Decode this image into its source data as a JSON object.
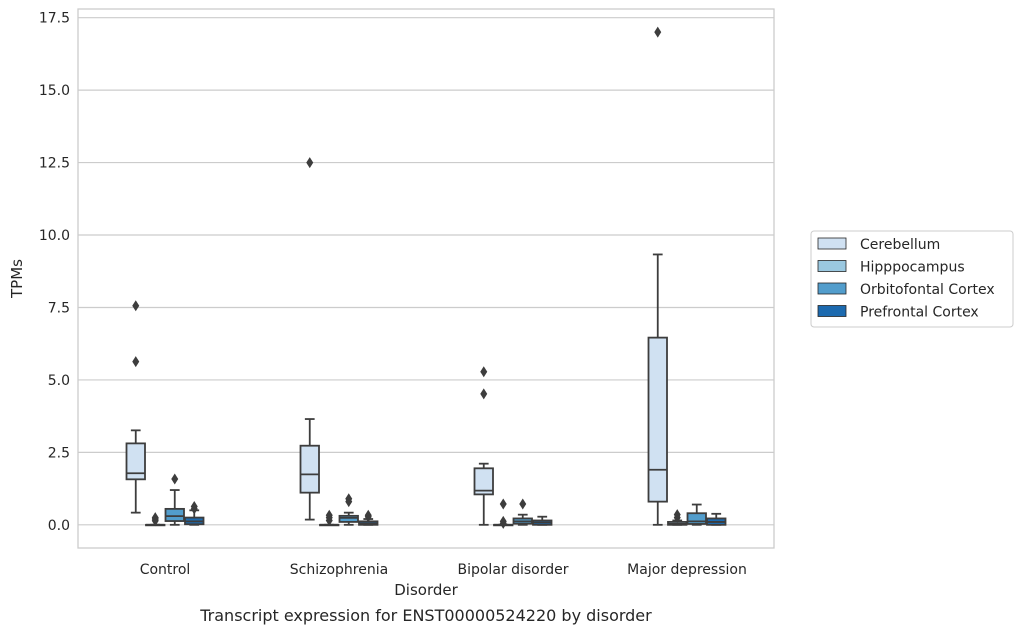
{
  "chart_data": {
    "type": "box",
    "xlabel": "Disorder",
    "ylabel": "TPMs",
    "caption": "Transcript expression for ENST00000524220 by disorder",
    "categories": [
      "Control",
      "Schizophrenia",
      "Bipolar disorder",
      "Major depression"
    ],
    "ylim": [
      -0.8,
      17.8
    ],
    "yticks": [
      0.0,
      2.5,
      5.0,
      7.5,
      10.0,
      12.5,
      15.0,
      17.5
    ],
    "ytick_labels": [
      "0.0",
      "2.5",
      "5.0",
      "7.5",
      "10.0",
      "12.5",
      "15.0",
      "17.5"
    ],
    "grid": true,
    "legend_position": "right",
    "series": [
      {
        "name": "Cerebellum",
        "color": "#d0e1f2",
        "boxes": [
          {
            "whislo": 0.42,
            "q1": 1.57,
            "med": 1.78,
            "q3": 2.81,
            "whishi": 3.26,
            "fliers": [
              5.63,
              7.56
            ]
          },
          {
            "whislo": 0.18,
            "q1": 1.11,
            "med": 1.74,
            "q3": 2.73,
            "whishi": 3.65,
            "fliers": [
              12.5
            ]
          },
          {
            "whislo": 0.0,
            "q1": 1.05,
            "med": 1.18,
            "q3": 1.95,
            "whishi": 2.11,
            "fliers": [
              4.52,
              5.28
            ]
          },
          {
            "whislo": 0.0,
            "q1": 0.8,
            "med": 1.9,
            "q3": 6.46,
            "whishi": 9.33,
            "fliers": [
              17.0
            ]
          }
        ]
      },
      {
        "name": "Hipppocampus",
        "color": "#9ac8e0",
        "boxes": [
          {
            "whislo": 0.0,
            "q1": 0.0,
            "med": 0.0,
            "q3": 0.0,
            "whishi": 0.0,
            "fliers": [
              0.14,
              0.2,
              0.25
            ]
          },
          {
            "whislo": 0.0,
            "q1": 0.0,
            "med": 0.0,
            "q3": 0.0,
            "whishi": 0.0,
            "fliers": [
              0.15,
              0.25,
              0.33
            ]
          },
          {
            "whislo": 0.0,
            "q1": 0.0,
            "med": 0.0,
            "q3": 0.0,
            "whishi": 0.0,
            "fliers": [
              0.05,
              0.12,
              0.72
            ]
          },
          {
            "whislo": 0.0,
            "q1": 0.0,
            "med": 0.03,
            "q3": 0.1,
            "whishi": 0.15,
            "fliers": [
              0.25,
              0.35
            ]
          }
        ]
      },
      {
        "name": "Orbitofontal Cortex",
        "color": "#529dcc",
        "boxes": [
          {
            "whislo": 0.0,
            "q1": 0.13,
            "med": 0.3,
            "q3": 0.55,
            "whishi": 1.2,
            "fliers": [
              1.58
            ]
          },
          {
            "whislo": 0.0,
            "q1": 0.1,
            "med": 0.24,
            "q3": 0.31,
            "whishi": 0.42,
            "fliers": [
              0.8,
              0.9
            ]
          },
          {
            "whislo": 0.0,
            "q1": 0.04,
            "med": 0.12,
            "q3": 0.22,
            "whishi": 0.35,
            "fliers": [
              0.72
            ]
          },
          {
            "whislo": 0.0,
            "q1": 0.03,
            "med": 0.12,
            "q3": 0.4,
            "whishi": 0.7,
            "fliers": []
          }
        ]
      },
      {
        "name": "Prefrontal Cortex",
        "color": "#1c6aaf",
        "boxes": [
          {
            "whislo": 0.0,
            "q1": 0.02,
            "med": 0.12,
            "q3": 0.25,
            "whishi": 0.5,
            "fliers": [
              0.55,
              0.63
            ]
          },
          {
            "whislo": 0.0,
            "q1": 0.0,
            "med": 0.05,
            "q3": 0.12,
            "whishi": 0.2,
            "fliers": [
              0.28,
              0.33
            ]
          },
          {
            "whislo": 0.0,
            "q1": 0.0,
            "med": 0.08,
            "q3": 0.15,
            "whishi": 0.28,
            "fliers": []
          },
          {
            "whislo": 0.0,
            "q1": 0.0,
            "med": 0.1,
            "q3": 0.22,
            "whishi": 0.38,
            "fliers": []
          }
        ]
      }
    ]
  }
}
